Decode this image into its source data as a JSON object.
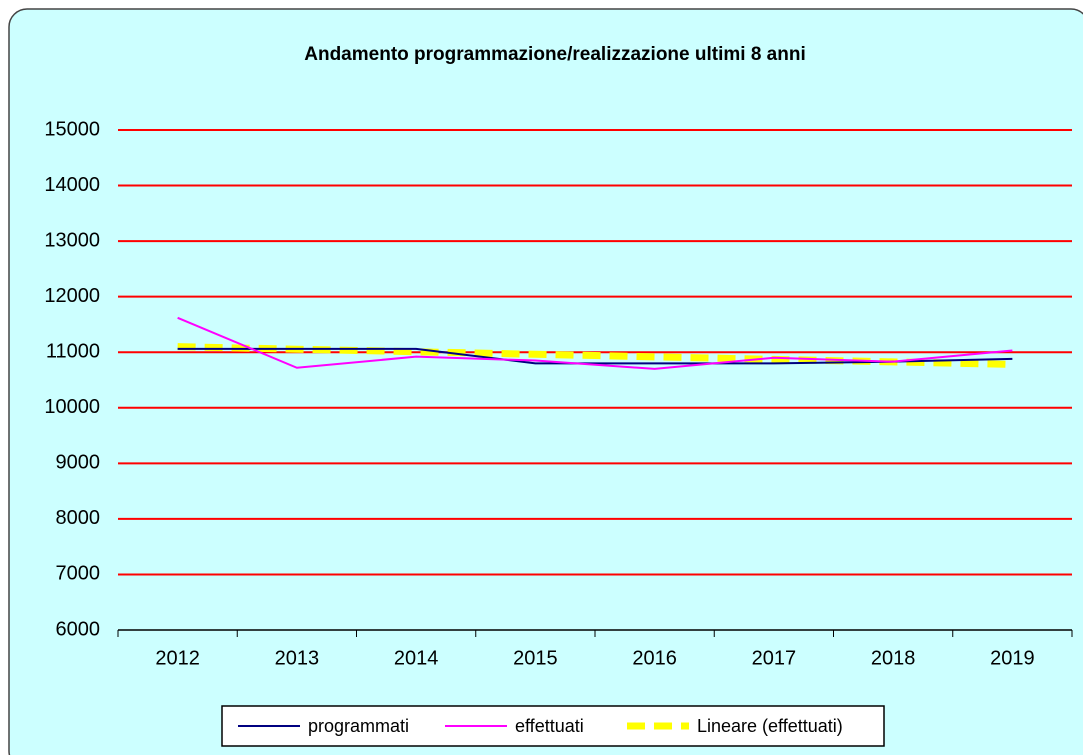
{
  "chart_data": {
    "type": "line",
    "title": "Andamento programmazione/realizzazione ultimi 8 anni",
    "categories": [
      "2012",
      "2013",
      "2014",
      "2015",
      "2016",
      "2017",
      "2018",
      "2019"
    ],
    "series": [
      {
        "name": "programmati",
        "color": "#000080",
        "values": [
          11060,
          11060,
          11060,
          10800,
          10800,
          10800,
          10830,
          10880
        ]
      },
      {
        "name": "effettuati",
        "color": "#ff00ff",
        "values": [
          11620,
          10720,
          10920,
          10850,
          10700,
          10900,
          10830,
          11030
        ]
      },
      {
        "name": "Lineare (effettuati)",
        "color": "#ffff00",
        "dashed": true,
        "values": [
          11100,
          11054,
          11009,
          10963,
          10917,
          10871,
          10826,
          10780
        ]
      }
    ],
    "ylim": [
      6000,
      15000
    ],
    "yticks": [
      6000,
      7000,
      8000,
      9000,
      10000,
      11000,
      12000,
      13000,
      14000,
      15000
    ],
    "grid": true,
    "grid_color": "#ff0000",
    "legend": "bottom",
    "background": "#ccffff"
  }
}
